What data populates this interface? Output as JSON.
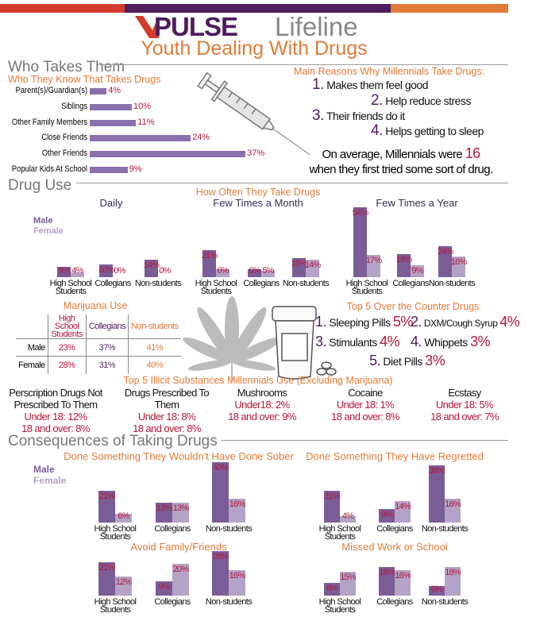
{
  "colors": {
    "red": "#d33a2c",
    "purple": "#4f1d5e",
    "orange": "#e07a37",
    "male": "#7a5c96",
    "female": "#b3a3c6",
    "value": "#b5173a"
  },
  "header": {
    "logo_word": "PULSE",
    "logo_suffix": "Lifeline",
    "title": "Youth Dealing With Drugs"
  },
  "who": {
    "heading": "Who Takes Them",
    "subtitle": "Who They Know That Takes Drugs"
  },
  "reasons": {
    "title": "Main Reasons Why Millennials Take Drugs:",
    "items": [
      {
        "n": "1.",
        "t": "Makes them feel good"
      },
      {
        "n": "2.",
        "t": "Help reduce stress"
      },
      {
        "n": "3.",
        "t": "Their friends do it"
      },
      {
        "n": "4.",
        "t": "Helps getting to sleep"
      }
    ],
    "avg_pre": "On average, Millennials were",
    "avg_num": "16",
    "avg_post": "when they first tried some sort of drug."
  },
  "drug_use": {
    "heading": "Drug Use",
    "title": "How Often They Take Drugs"
  },
  "legend": {
    "male": "Male",
    "female": "Female"
  },
  "marijuana": {
    "title": "Marijuana Use",
    "columns": [
      "High School Students",
      "Collegians",
      "Non-students"
    ],
    "rows": [
      {
        "label": "Male",
        "values": [
          "23%",
          "37%",
          "41%"
        ]
      },
      {
        "label": "Female",
        "values": [
          "28%",
          "31%",
          "40%"
        ]
      }
    ]
  },
  "otc": {
    "title": "Top 5 Over the Counter Drugs",
    "items": [
      {
        "n": "1.",
        "t": "Sleeping Pills",
        "p": "5%"
      },
      {
        "n": "2.",
        "t": "DXM/Cough Syrup",
        "p": "4%"
      },
      {
        "n": "3.",
        "t": "Stimulants",
        "p": "4%"
      },
      {
        "n": "4.",
        "t": "Whippets",
        "p": "3%"
      },
      {
        "n": "5.",
        "t": "Diet Pills",
        "p": "3%"
      }
    ]
  },
  "illicit": {
    "title": "Top 5 Illicit Substances Millennials Use (Excluding Marijuana)",
    "items": [
      {
        "name": "Perscription Drugs Not Prescribed To Them",
        "u18": "Under 18: 12%",
        "o18": "18 and over: 8%"
      },
      {
        "name": "Drugs Prescribed To Them",
        "u18": "Under 18: 8%",
        "o18": "18 and over: 8%"
      },
      {
        "name": "Mushrooms",
        "u18": "Under18: 2%",
        "o18": "18 and over: 9%"
      },
      {
        "name": "Cocaine",
        "u18": "Under 18: 1%",
        "o18": "18 and over: 8%"
      },
      {
        "name": "Ecstasy",
        "u18": "Under 18: 5%",
        "o18": "18 and over: 7%"
      }
    ]
  },
  "consequences": {
    "heading": "Consequences of Taking Drugs"
  },
  "chart_data": [
    {
      "type": "bar",
      "orientation": "horizontal",
      "title": "Who They Know That Takes Drugs",
      "categories": [
        "Parent(s)/Guardian(s)",
        "Siblings",
        "Other Family Members",
        "Close Friends",
        "Other Friends",
        "Popular Kids At School"
      ],
      "values": [
        4,
        10,
        11,
        24,
        37,
        9
      ],
      "unit": "%"
    },
    {
      "type": "bar",
      "title": "Daily",
      "categories": [
        "High School Students",
        "Collegians",
        "Non-students"
      ],
      "series": [
        {
          "name": "Male",
          "values": [
            8,
            10,
            14
          ]
        },
        {
          "name": "Female",
          "values": [
            4,
            0,
            0
          ]
        }
      ],
      "unit": "%"
    },
    {
      "type": "bar",
      "title": "Few Times a Month",
      "categories": [
        "High School Students",
        "Collegians",
        "Non-students"
      ],
      "series": [
        {
          "name": "Male",
          "values": [
            21,
            6,
            15
          ]
        },
        {
          "name": "Female",
          "values": [
            6,
            5,
            14
          ]
        }
      ],
      "unit": "%"
    },
    {
      "type": "bar",
      "title": "Few Times a Year",
      "categories": [
        "High School Students",
        "Collegians",
        "Non-students"
      ],
      "series": [
        {
          "name": "Male",
          "values": [
            54,
            18,
            24
          ]
        },
        {
          "name": "Female",
          "values": [
            17,
            9,
            16
          ]
        }
      ],
      "unit": "%"
    },
    {
      "type": "bar",
      "title": "Done Something They Wouldn't Have Done Sober",
      "categories": [
        "High School Students",
        "Collegians",
        "Non-students"
      ],
      "series": [
        {
          "name": "Male",
          "values": [
            21,
            13,
            40
          ]
        },
        {
          "name": "Female",
          "values": [
            6,
            13,
            16
          ]
        }
      ],
      "unit": "%"
    },
    {
      "type": "bar",
      "title": "Done Something They Have Regretted",
      "categories": [
        "High School Students",
        "Collegians",
        "Non-students"
      ],
      "series": [
        {
          "name": "Male",
          "values": [
            21,
            9,
            38
          ]
        },
        {
          "name": "Female",
          "values": [
            4,
            14,
            16
          ]
        }
      ],
      "unit": "%"
    },
    {
      "type": "bar",
      "title": "Avoid Family/Friends",
      "categories": [
        "High School Students",
        "Collegians",
        "Non-students"
      ],
      "series": [
        {
          "name": "Male",
          "values": [
            21,
            9,
            28
          ]
        },
        {
          "name": "Female",
          "values": [
            12,
            20,
            16
          ]
        }
      ],
      "unit": "%"
    },
    {
      "type": "bar",
      "title": "Missed Work or School",
      "categories": [
        "High School Students",
        "Collegians",
        "Non-students"
      ],
      "series": [
        {
          "name": "Male",
          "values": [
            8,
            18,
            6
          ]
        },
        {
          "name": "Female",
          "values": [
            15,
            16,
            18
          ]
        }
      ],
      "unit": "%"
    }
  ]
}
